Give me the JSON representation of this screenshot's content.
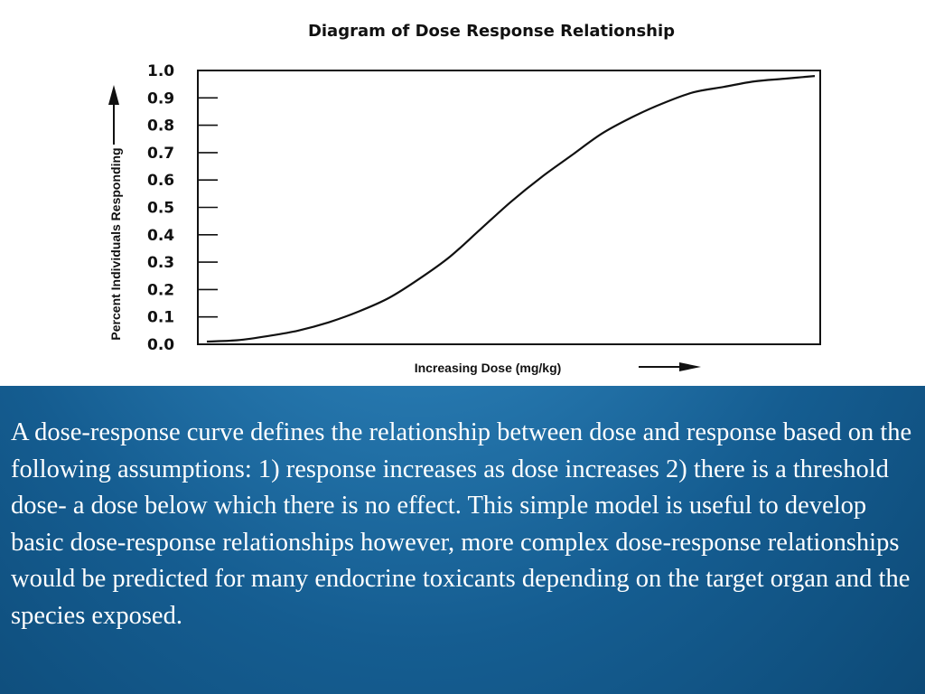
{
  "chart_data": {
    "type": "line",
    "title": "Diagram of Dose Response Relationship",
    "xlabel": "Increasing Dose (mg/kg)",
    "ylabel": "Percent Individuals Responding",
    "ylim": [
      0,
      1.0
    ],
    "xlim": [
      0,
      10
    ],
    "yticks": [
      "0.0",
      "0.1",
      "0.2",
      "0.3",
      "0.4",
      "0.5",
      "0.6",
      "0.7",
      "0.8",
      "0.9",
      "1.0"
    ],
    "grid": false,
    "series": [
      {
        "x": [
          0,
          0.5,
          1,
          1.5,
          2,
          2.5,
          3,
          3.5,
          4,
          4.5,
          5,
          5.5,
          6,
          6.5,
          7,
          7.5,
          8,
          8.5,
          9,
          9.5,
          10
        ],
        "y": [
          0.01,
          0.015,
          0.03,
          0.05,
          0.08,
          0.12,
          0.17,
          0.24,
          0.32,
          0.42,
          0.52,
          0.61,
          0.69,
          0.77,
          0.83,
          0.88,
          0.92,
          0.94,
          0.96,
          0.97,
          0.98
        ]
      }
    ]
  },
  "caption": "A dose-response curve defines the relationship between dose and response based on the following assumptions: 1) response increases as dose increases 2) there is a threshold dose- a dose below which there is no effect. This simple model is useful to develop basic dose-response relationships however, more complex dose-response relationships would be predicted for many endocrine toxicants depending on the target organ and the species exposed."
}
